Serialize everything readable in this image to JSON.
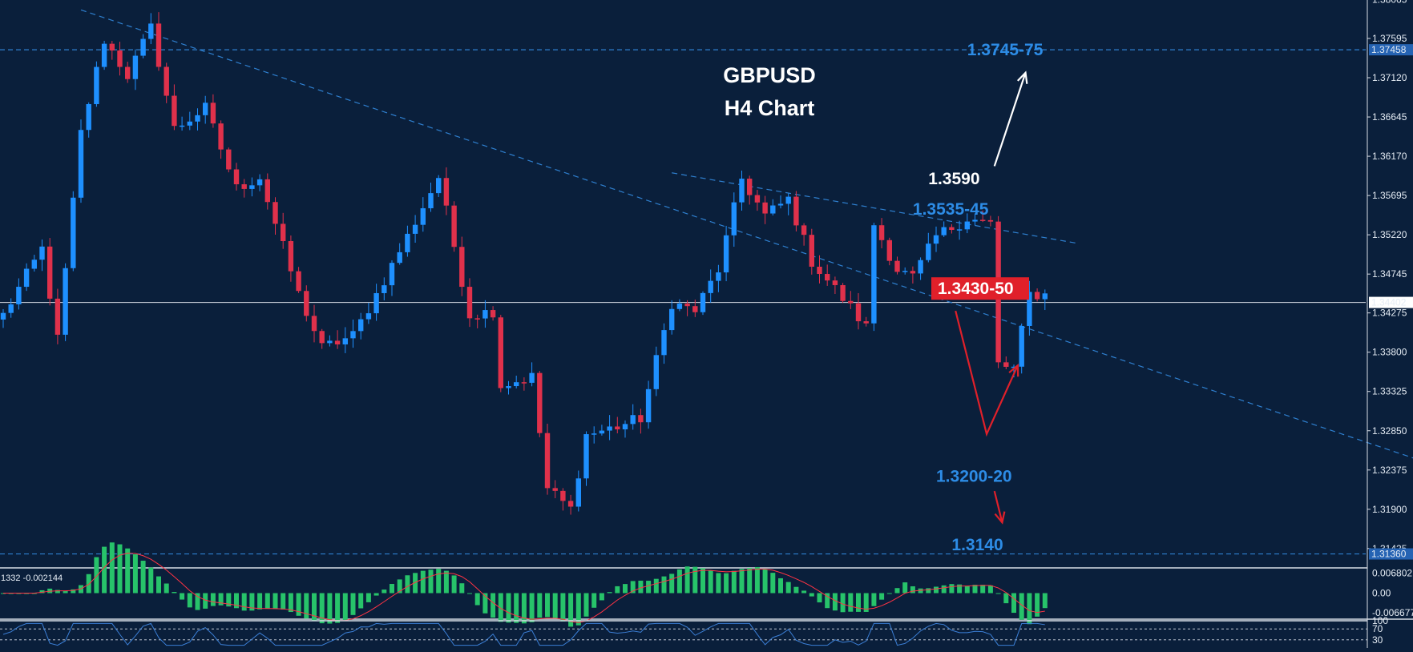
{
  "colors": {
    "background": "#0a1f3b",
    "bull": "#1e90ff",
    "bear": "#e0314b",
    "grid_line": "#d8dde6",
    "dashed_line": "#2f80d0",
    "annotation_blue": "#2d8ce6",
    "annotation_white": "#ffffff",
    "annotation_red": "#e0202a",
    "price_label_bg": "#2563b3",
    "histogram": "#27c36a",
    "signal": "#ff3344",
    "rsi_line": "#3b7fd6"
  },
  "chart_data": {
    "type": "candlestick",
    "symbol": "GBPUSD",
    "title": "GBPUSD",
    "subtitle": "H4 Chart",
    "ylim": [
      1.3122,
      1.3806
    ],
    "y_ticks": [
      "1.38065",
      "1.37595",
      "1.37120",
      "1.36645",
      "1.36170",
      "1.35695",
      "1.35220",
      "1.34745",
      "1.34275",
      "1.33800",
      "1.33325",
      "1.32850",
      "1.32375",
      "1.31900",
      "1.31425"
    ],
    "current_price": {
      "value": 1.34402,
      "label": "1.34402"
    },
    "resistance_line": {
      "value": 1.37458,
      "label": "1.37458"
    },
    "support_line": {
      "value": 1.3136,
      "label": "1.31360"
    },
    "trendlines": [
      {
        "from": [
          10,
          1.3794
        ],
        "to": [
          213,
          1.3152
        ]
      },
      {
        "from": [
          86,
          1.3597
        ],
        "to": [
          138,
          1.3512
        ]
      }
    ],
    "annotations": [
      {
        "text": "1.3745-75",
        "price": 1.3747,
        "bar": 124,
        "color": "blue"
      },
      {
        "text": "1.3590",
        "price": 1.3591,
        "bar": 119,
        "color": "white"
      },
      {
        "text": "1.3535-45",
        "price": 1.3554,
        "bar": 117,
        "color": "blue"
      },
      {
        "text": "1.3430-50",
        "price": 1.3458,
        "bar": 120,
        "color": "red-box"
      },
      {
        "text": "1.3200-20",
        "price": 1.3231,
        "bar": 120,
        "color": "blue"
      },
      {
        "text": "1.3140",
        "price": 1.3148,
        "bar": 122,
        "color": "blue"
      }
    ],
    "arrows": [
      {
        "points": [
          [
            127.5,
            1.3605
          ],
          [
            131.5,
            1.3718
          ]
        ],
        "color": "white"
      },
      {
        "points": [
          [
            122.5,
            1.343
          ],
          [
            126.5,
            1.3281
          ],
          [
            130.5,
            1.3364
          ]
        ],
        "color": "red"
      },
      {
        "points": [
          [
            127.5,
            1.3212
          ],
          [
            128.5,
            1.3174
          ]
        ],
        "color": "red"
      }
    ],
    "waypoints": [
      [
        0,
        1.3425
      ],
      [
        5,
        1.3505
      ],
      [
        7,
        1.3395
      ],
      [
        10,
        1.3645
      ],
      [
        13,
        1.3758
      ],
      [
        16,
        1.3715
      ],
      [
        19,
        1.3772
      ],
      [
        22,
        1.365
      ],
      [
        26,
        1.3675
      ],
      [
        30,
        1.3578
      ],
      [
        33,
        1.3592
      ],
      [
        38,
        1.345
      ],
      [
        41,
        1.3385
      ],
      [
        45,
        1.34
      ],
      [
        48,
        1.345
      ],
      [
        52,
        1.352
      ],
      [
        56,
        1.3592
      ],
      [
        60,
        1.3425
      ],
      [
        63,
        1.343
      ],
      [
        64,
        1.334
      ],
      [
        68,
        1.335
      ],
      [
        70,
        1.3215
      ],
      [
        73,
        1.319
      ],
      [
        75,
        1.328
      ],
      [
        79,
        1.329
      ],
      [
        82,
        1.33
      ],
      [
        86,
        1.344
      ],
      [
        89,
        1.343
      ],
      [
        92,
        1.348
      ],
      [
        95,
        1.359
      ],
      [
        98,
        1.3545
      ],
      [
        101,
        1.3565
      ],
      [
        104,
        1.349
      ],
      [
        108,
        1.3445
      ],
      [
        111,
        1.341
      ],
      [
        112,
        1.3535
      ],
      [
        115,
        1.348
      ],
      [
        117,
        1.347
      ],
      [
        120,
        1.352
      ],
      [
        124,
        1.3542
      ],
      [
        127,
        1.3535
      ],
      [
        128,
        1.3365
      ],
      [
        130,
        1.336
      ],
      [
        132,
        1.345
      ],
      [
        134,
        1.345
      ]
    ],
    "bar_count": 135,
    "indicators": {
      "macd": {
        "readout": "1332 -0.002144",
        "y_ticks": [
          "0.006802",
          "0.00",
          "-0.006677"
        ],
        "ylim": [
          -0.0085,
          0.0085
        ]
      },
      "rsi": {
        "y_ticks": [
          "100",
          "70",
          "30"
        ],
        "ylim": [
          0,
          100
        ]
      }
    }
  }
}
